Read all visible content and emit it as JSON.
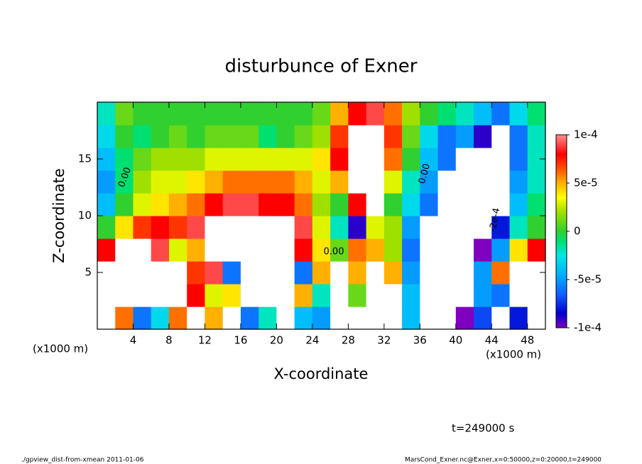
{
  "chart_data": {
    "type": "heatmap",
    "title": "disturbunce of Exner",
    "xlabel": "X-coordinate",
    "ylabel": "Z-coordinate",
    "x_unit": "(x1000 m)",
    "y_unit": "(x1000 m)",
    "time_label": "t=249000 s",
    "footer_left": "./gpview_dist-from-xmean  2011-01-06",
    "footer_right": "MarsCond_Exner.nc@Exner,x=0:50000,z=0:20000,t=249000",
    "xlim": [
      0,
      50
    ],
    "ylim": [
      0,
      20
    ],
    "xticks": [
      4,
      8,
      12,
      16,
      20,
      24,
      28,
      32,
      36,
      40,
      44,
      48
    ],
    "yticks": [
      5,
      10,
      15
    ],
    "clim": [
      -0.0001,
      0.0001
    ],
    "colorbar_ticks": [
      {
        "value": 0.0001,
        "label": "1e-4"
      },
      {
        "value": 5e-05,
        "label": "5e-5"
      },
      0,
      {
        "value": -5e-05,
        "label": "-5e-5"
      },
      {
        "value": -0.0001,
        "label": "-1e-4"
      }
    ],
    "colormap": [
      [
        -0.0001,
        "#7f00bf"
      ],
      [
        -8.5e-05,
        "#0000d0"
      ],
      [
        -6.5e-05,
        "#1060ff"
      ],
      [
        -4.5e-05,
        "#00b0ff"
      ],
      [
        -2.5e-05,
        "#00e6e6"
      ],
      [
        -1e-05,
        "#00e070"
      ],
      [
        0,
        "#30d030"
      ],
      [
        2e-05,
        "#a0e000"
      ],
      [
        3.5e-05,
        "#ffff00"
      ],
      [
        5e-05,
        "#ffb000"
      ],
      [
        6.5e-05,
        "#ff5000"
      ],
      [
        8e-05,
        "#ff0000"
      ],
      [
        0.0001,
        "#ff9090"
      ]
    ],
    "out_of_range_color": "#ffffff",
    "contour_labels": [
      "0.00",
      "0.00",
      "0.00",
      "-2e-4"
    ],
    "x": [
      1,
      3,
      5,
      7,
      9,
      11,
      13,
      15,
      17,
      19,
      21,
      23,
      25,
      27,
      29,
      31,
      33,
      35,
      37,
      39,
      41,
      43,
      45,
      47,
      49
    ],
    "y": [
      1,
      3,
      5,
      7,
      9,
      11,
      13,
      15,
      17,
      19
    ],
    "z": [
      [
        0.00015,
        6e-05,
        -6e-05,
        -3e-05,
        6e-05,
        -0.00015,
        5e-05,
        0.00015,
        -6e-05,
        -2e-05,
        0.00015,
        -4e-05,
        -5e-05,
        -0.00015,
        0.00015,
        0.00015,
        0.00015,
        -4e-05,
        -0.00015,
        -0.00015,
        -0.0001,
        -7e-05,
        -0.00015,
        -8e-05,
        0.00015
      ],
      [
        0.00015,
        0.00015,
        0.00015,
        0.00015,
        0.00015,
        8e-05,
        3e-05,
        4e-05,
        0.00015,
        0.00015,
        0.00015,
        5e-05,
        -2e-05,
        -0.00015,
        1e-05,
        0.00015,
        0.00015,
        -4e-05,
        -0.00015,
        -0.00015,
        -0.00015,
        -5e-05,
        -6e-05,
        0.00015,
        0.00015
      ],
      [
        0.00015,
        0.00015,
        0.00015,
        0.00015,
        0.00015,
        7e-05,
        9e-05,
        -6e-05,
        0.00015,
        0.00015,
        0.00015,
        -6e-05,
        5e-05,
        -0.00015,
        5e-05,
        0.00015,
        5e-05,
        -5e-05,
        -0.00015,
        -0.00015,
        -0.00015,
        -5e-05,
        6e-05,
        0.00015,
        0.00015
      ],
      [
        8e-05,
        0.00015,
        0.00015,
        9e-05,
        3e-05,
        5e-05,
        0.00015,
        0.00015,
        0.00015,
        0.00015,
        0.00015,
        8e-05,
        4e-05,
        1e-05,
        6e-05,
        5e-05,
        2e-05,
        -6e-05,
        -0.00015,
        -0.00015,
        -0.00015,
        -0.0001,
        -5e-05,
        4e-05,
        8e-05
      ],
      [
        0,
        4e-05,
        7e-05,
        8e-05,
        7e-05,
        9e-05,
        0.00015,
        0.00015,
        0.00015,
        0.00015,
        0.00015,
        9e-05,
        3e-05,
        -2e-05,
        -9e-05,
        3e-05,
        2e-05,
        -5e-05,
        -0.00015,
        -0.00015,
        -0.00015,
        -0.00015,
        -8e-05,
        -2e-05,
        0
      ],
      [
        -4e-05,
        0,
        3e-05,
        4e-05,
        5e-05,
        6e-05,
        8e-05,
        9e-05,
        9e-05,
        8e-05,
        8e-05,
        6e-05,
        2e-05,
        0,
        8e-05,
        0.00015,
        0,
        -3e-05,
        -6e-05,
        -0.00015,
        -0.00015,
        -0.00015,
        -0.00015,
        -4e-05,
        -1e-05
      ],
      [
        -5e-05,
        -1e-05,
        2e-05,
        3e-05,
        3e-05,
        4e-05,
        5e-05,
        6e-05,
        6e-05,
        6e-05,
        6e-05,
        5e-05,
        3e-05,
        5e-05,
        0.00015,
        0.00015,
        3e-05,
        -2e-05,
        -5e-05,
        -0.00015,
        -0.00015,
        -0.00015,
        -0.00015,
        -5e-05,
        -2e-05
      ],
      [
        -4e-05,
        -1e-05,
        1e-05,
        2e-05,
        2e-05,
        2e-05,
        3e-05,
        3e-05,
        3e-05,
        3e-05,
        3e-05,
        3e-05,
        4e-05,
        8e-05,
        0.00015,
        0.00015,
        6e-05,
        0,
        -4e-05,
        -6e-05,
        -0.00015,
        -0.00015,
        -0.00015,
        -6e-05,
        -2e-05
      ],
      [
        -3e-05,
        0,
        -1e-05,
        0,
        1e-05,
        0,
        1e-05,
        1e-05,
        1e-05,
        -1e-05,
        0,
        1e-05,
        2e-05,
        7e-05,
        0.00015,
        0.00015,
        7e-05,
        1e-05,
        -3e-05,
        -6e-05,
        -5e-05,
        -9e-05,
        -0.00015,
        -6e-05,
        -2e-05
      ],
      [
        -2e-05,
        1e-05,
        0,
        0,
        0,
        0,
        0,
        0,
        0,
        0,
        0,
        0,
        1e-05,
        5e-05,
        8e-05,
        9e-05,
        6e-05,
        2e-05,
        0,
        -1e-05,
        -2e-05,
        -4e-05,
        -6e-05,
        -3e-05,
        -1e-05
      ]
    ]
  }
}
